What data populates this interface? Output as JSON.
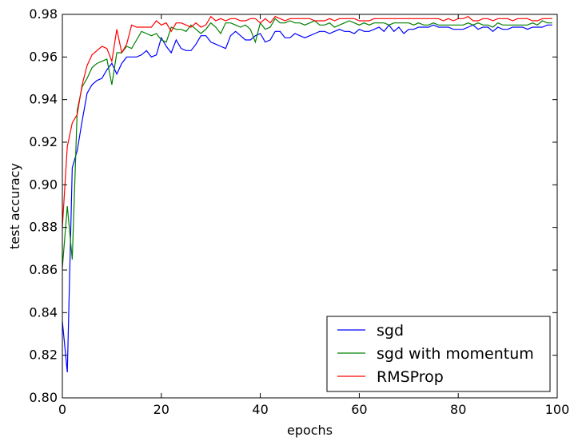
{
  "chart_data": {
    "type": "line",
    "xlabel": "epochs",
    "ylabel": "test accuracy",
    "xlim": [
      0,
      100
    ],
    "ylim": [
      0.8,
      0.98
    ],
    "xticks": [
      0,
      20,
      40,
      60,
      80,
      100
    ],
    "yticks": [
      0.8,
      0.82,
      0.84,
      0.86,
      0.88,
      0.9,
      0.92,
      0.94,
      0.96,
      0.98
    ],
    "ytick_labels": [
      "0.80",
      "0.82",
      "0.84",
      "0.86",
      "0.88",
      "0.90",
      "0.92",
      "0.94",
      "0.96",
      "0.98"
    ],
    "grid": false,
    "legend_position": "lower-right",
    "series": [
      {
        "name": "sgd",
        "color": "#0000ff",
        "x": [
          0,
          1,
          2,
          3,
          4,
          5,
          6,
          7,
          8,
          9,
          10,
          11,
          12,
          13,
          14,
          15,
          16,
          17,
          18,
          19,
          20,
          21,
          22,
          23,
          24,
          25,
          26,
          27,
          28,
          29,
          30,
          31,
          32,
          33,
          34,
          35,
          36,
          37,
          38,
          39,
          40,
          41,
          42,
          43,
          44,
          45,
          46,
          47,
          48,
          49,
          50,
          51,
          52,
          53,
          54,
          55,
          56,
          57,
          58,
          59,
          60,
          61,
          62,
          63,
          64,
          65,
          66,
          67,
          68,
          69,
          70,
          71,
          72,
          73,
          74,
          75,
          76,
          77,
          78,
          79,
          80,
          81,
          82,
          83,
          84,
          85,
          86,
          87,
          88,
          89,
          90,
          91,
          92,
          93,
          94,
          95,
          96,
          97,
          98,
          99
        ],
        "values": [
          0.836,
          0.812,
          0.908,
          0.916,
          0.93,
          0.943,
          0.947,
          0.949,
          0.95,
          0.954,
          0.957,
          0.952,
          0.957,
          0.96,
          0.96,
          0.96,
          0.961,
          0.963,
          0.96,
          0.961,
          0.969,
          0.965,
          0.962,
          0.968,
          0.964,
          0.963,
          0.963,
          0.966,
          0.97,
          0.97,
          0.967,
          0.966,
          0.965,
          0.964,
          0.97,
          0.972,
          0.97,
          0.968,
          0.968,
          0.97,
          0.971,
          0.967,
          0.968,
          0.972,
          0.972,
          0.969,
          0.969,
          0.971,
          0.97,
          0.969,
          0.97,
          0.971,
          0.972,
          0.972,
          0.971,
          0.972,
          0.973,
          0.972,
          0.972,
          0.971,
          0.973,
          0.972,
          0.972,
          0.973,
          0.974,
          0.972,
          0.975,
          0.972,
          0.974,
          0.971,
          0.973,
          0.973,
          0.974,
          0.974,
          0.974,
          0.975,
          0.974,
          0.974,
          0.974,
          0.973,
          0.973,
          0.973,
          0.974,
          0.975,
          0.973,
          0.974,
          0.974,
          0.972,
          0.974,
          0.973,
          0.973,
          0.974,
          0.974,
          0.974,
          0.973,
          0.974,
          0.974,
          0.974,
          0.975,
          0.975
        ]
      },
      {
        "name": "sgd with momentum",
        "color": "#008000",
        "x": [
          0,
          1,
          2,
          3,
          4,
          5,
          6,
          7,
          8,
          9,
          10,
          11,
          12,
          13,
          14,
          15,
          16,
          17,
          18,
          19,
          20,
          21,
          22,
          23,
          24,
          25,
          26,
          27,
          28,
          29,
          30,
          31,
          32,
          33,
          34,
          35,
          36,
          37,
          38,
          39,
          40,
          41,
          42,
          43,
          44,
          45,
          46,
          47,
          48,
          49,
          50,
          51,
          52,
          53,
          54,
          55,
          56,
          57,
          58,
          59,
          60,
          61,
          62,
          63,
          64,
          65,
          66,
          67,
          68,
          69,
          70,
          71,
          72,
          73,
          74,
          75,
          76,
          77,
          78,
          79,
          80,
          81,
          82,
          83,
          84,
          85,
          86,
          87,
          88,
          89,
          90,
          91,
          92,
          93,
          94,
          95,
          96,
          97,
          98,
          99
        ],
        "values": [
          0.861,
          0.89,
          0.865,
          0.935,
          0.946,
          0.95,
          0.955,
          0.957,
          0.958,
          0.959,
          0.947,
          0.962,
          0.962,
          0.965,
          0.964,
          0.968,
          0.972,
          0.971,
          0.97,
          0.971,
          0.968,
          0.967,
          0.974,
          0.973,
          0.973,
          0.972,
          0.975,
          0.973,
          0.971,
          0.973,
          0.976,
          0.974,
          0.971,
          0.976,
          0.976,
          0.975,
          0.974,
          0.975,
          0.973,
          0.967,
          0.976,
          0.973,
          0.974,
          0.978,
          0.976,
          0.976,
          0.977,
          0.976,
          0.976,
          0.975,
          0.976,
          0.977,
          0.975,
          0.975,
          0.976,
          0.974,
          0.975,
          0.976,
          0.977,
          0.976,
          0.975,
          0.976,
          0.975,
          0.976,
          0.976,
          0.976,
          0.975,
          0.976,
          0.976,
          0.976,
          0.976,
          0.975,
          0.976,
          0.975,
          0.975,
          0.976,
          0.975,
          0.975,
          0.975,
          0.975,
          0.975,
          0.975,
          0.976,
          0.975,
          0.976,
          0.975,
          0.975,
          0.974,
          0.976,
          0.975,
          0.975,
          0.975,
          0.975,
          0.975,
          0.975,
          0.976,
          0.975,
          0.977,
          0.976,
          0.976
        ]
      },
      {
        "name": "RMSProp",
        "color": "#ff0000",
        "x": [
          0,
          1,
          2,
          3,
          4,
          5,
          6,
          7,
          8,
          9,
          10,
          11,
          12,
          13,
          14,
          15,
          16,
          17,
          18,
          19,
          20,
          21,
          22,
          23,
          24,
          25,
          26,
          27,
          28,
          29,
          30,
          31,
          32,
          33,
          34,
          35,
          36,
          37,
          38,
          39,
          40,
          41,
          42,
          43,
          44,
          45,
          46,
          47,
          48,
          49,
          50,
          51,
          52,
          53,
          54,
          55,
          56,
          57,
          58,
          59,
          60,
          61,
          62,
          63,
          64,
          65,
          66,
          67,
          68,
          69,
          70,
          71,
          72,
          73,
          74,
          75,
          76,
          77,
          78,
          79,
          80,
          81,
          82,
          83,
          84,
          85,
          86,
          87,
          88,
          89,
          90,
          91,
          92,
          93,
          94,
          95,
          96,
          97,
          98,
          99
        ],
        "values": [
          0.88,
          0.918,
          0.929,
          0.933,
          0.947,
          0.956,
          0.961,
          0.963,
          0.965,
          0.964,
          0.958,
          0.973,
          0.962,
          0.966,
          0.975,
          0.974,
          0.974,
          0.974,
          0.974,
          0.977,
          0.975,
          0.976,
          0.972,
          0.976,
          0.976,
          0.975,
          0.974,
          0.976,
          0.974,
          0.975,
          0.979,
          0.977,
          0.978,
          0.977,
          0.978,
          0.978,
          0.977,
          0.977,
          0.978,
          0.978,
          0.976,
          0.978,
          0.976,
          0.979,
          0.978,
          0.977,
          0.978,
          0.978,
          0.978,
          0.978,
          0.978,
          0.977,
          0.977,
          0.977,
          0.978,
          0.977,
          0.978,
          0.978,
          0.978,
          0.978,
          0.977,
          0.977,
          0.977,
          0.978,
          0.978,
          0.978,
          0.978,
          0.978,
          0.978,
          0.978,
          0.978,
          0.978,
          0.978,
          0.978,
          0.978,
          0.978,
          0.978,
          0.977,
          0.978,
          0.977,
          0.978,
          0.978,
          0.979,
          0.977,
          0.977,
          0.978,
          0.978,
          0.977,
          0.978,
          0.978,
          0.978,
          0.977,
          0.978,
          0.978,
          0.978,
          0.977,
          0.977,
          0.978,
          0.978,
          0.978
        ]
      }
    ]
  }
}
